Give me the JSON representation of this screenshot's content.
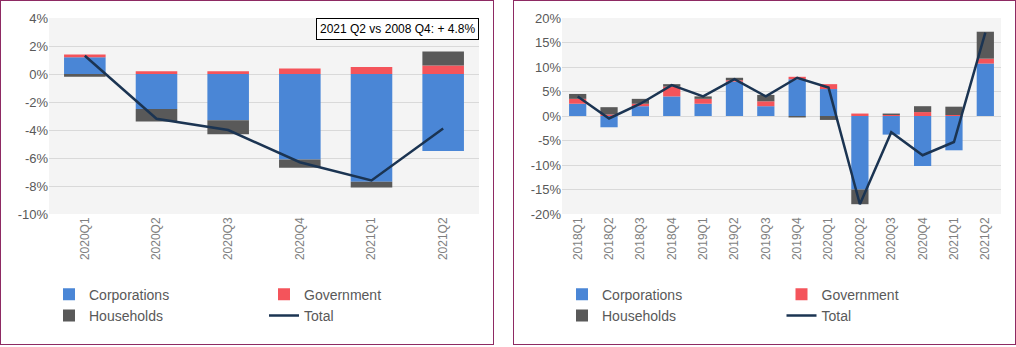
{
  "chart_data": [
    {
      "type": "bar",
      "stacked": true,
      "grid": true,
      "legend": "bottom",
      "annotations": [
        "2021 Q2 vs 2008 Q4: + 4.8%"
      ],
      "categories": [
        "2020Q1",
        "2020Q2",
        "2020Q3",
        "2020Q4",
        "2021Q1",
        "2021Q2"
      ],
      "series": [
        {
          "name": "Corporations",
          "type": "bar",
          "color": "#4a86d6",
          "values": [
            1.2,
            -2.5,
            -3.3,
            -6.1,
            -7.7,
            -5.5
          ]
        },
        {
          "name": "Government",
          "type": "bar",
          "color": "#f4545b",
          "values": [
            0.2,
            0.2,
            0.2,
            0.4,
            0.5,
            0.6
          ]
        },
        {
          "name": "Households",
          "type": "bar",
          "color": "#595959",
          "values": [
            -0.2,
            -0.9,
            -1.0,
            -0.6,
            -0.4,
            1.0
          ]
        },
        {
          "name": "Total",
          "type": "line",
          "color": "#1b3452",
          "values": [
            1.3,
            -3.2,
            -4.0,
            -6.3,
            -7.6,
            -3.9
          ]
        }
      ],
      "ylim": [
        -10,
        4
      ],
      "yticks": [
        {
          "value": -10,
          "label": "-10%"
        },
        {
          "value": -8,
          "label": "-8%"
        },
        {
          "value": -6,
          "label": "-6%"
        },
        {
          "value": -4,
          "label": "-4%"
        },
        {
          "value": -2,
          "label": "-2%"
        },
        {
          "value": 0,
          "label": "0%"
        },
        {
          "value": 2,
          "label": "2%"
        },
        {
          "value": 4,
          "label": "4%"
        }
      ]
    },
    {
      "type": "bar",
      "stacked": true,
      "grid": true,
      "legend": "bottom",
      "categories": [
        "2018Q1",
        "2018Q2",
        "2018Q3",
        "2018Q4",
        "2019Q1",
        "2019Q2",
        "2019Q3",
        "2019Q4",
        "2020Q1",
        "2020Q2",
        "2020Q3",
        "2020Q4",
        "2021Q1",
        "2021Q2"
      ],
      "series": [
        {
          "name": "Corporations",
          "type": "bar",
          "color": "#4a86d6",
          "values": [
            2.5,
            -2.3,
            2.0,
            4.0,
            2.5,
            7.0,
            2.0,
            7.5,
            5.5,
            -15.0,
            -3.8,
            -10.2,
            -7.0,
            10.7
          ]
        },
        {
          "name": "Government",
          "type": "bar",
          "color": "#f4545b",
          "values": [
            1.0,
            0.3,
            0.5,
            2.0,
            1.0,
            0.3,
            1.0,
            0.5,
            1.0,
            0.5,
            0.2,
            0.8,
            0.2,
            1.0
          ]
        },
        {
          "name": "Households",
          "type": "bar",
          "color": "#595959",
          "values": [
            1.0,
            1.5,
            1.0,
            0.5,
            0.5,
            0.5,
            1.3,
            -0.3,
            -0.8,
            -3.0,
            0.3,
            1.2,
            1.7,
            5.5
          ]
        },
        {
          "name": "Total",
          "type": "line",
          "color": "#1b3452",
          "values": [
            4.0,
            -0.5,
            2.5,
            6.3,
            4.0,
            7.5,
            4.0,
            7.8,
            5.8,
            -18.0,
            -3.3,
            -8.0,
            -5.3,
            17.0
          ]
        }
      ],
      "ylim": [
        -20,
        20
      ],
      "yticks": [
        {
          "value": -20,
          "label": "-20%"
        },
        {
          "value": -15,
          "label": "-15%"
        },
        {
          "value": -10,
          "label": "-10%"
        },
        {
          "value": -5,
          "label": "-5%"
        },
        {
          "value": 0,
          "label": "0%"
        },
        {
          "value": 5,
          "label": "5%"
        },
        {
          "value": 10,
          "label": "10%"
        },
        {
          "value": 15,
          "label": "15%"
        },
        {
          "value": 20,
          "label": "20%"
        }
      ]
    }
  ]
}
